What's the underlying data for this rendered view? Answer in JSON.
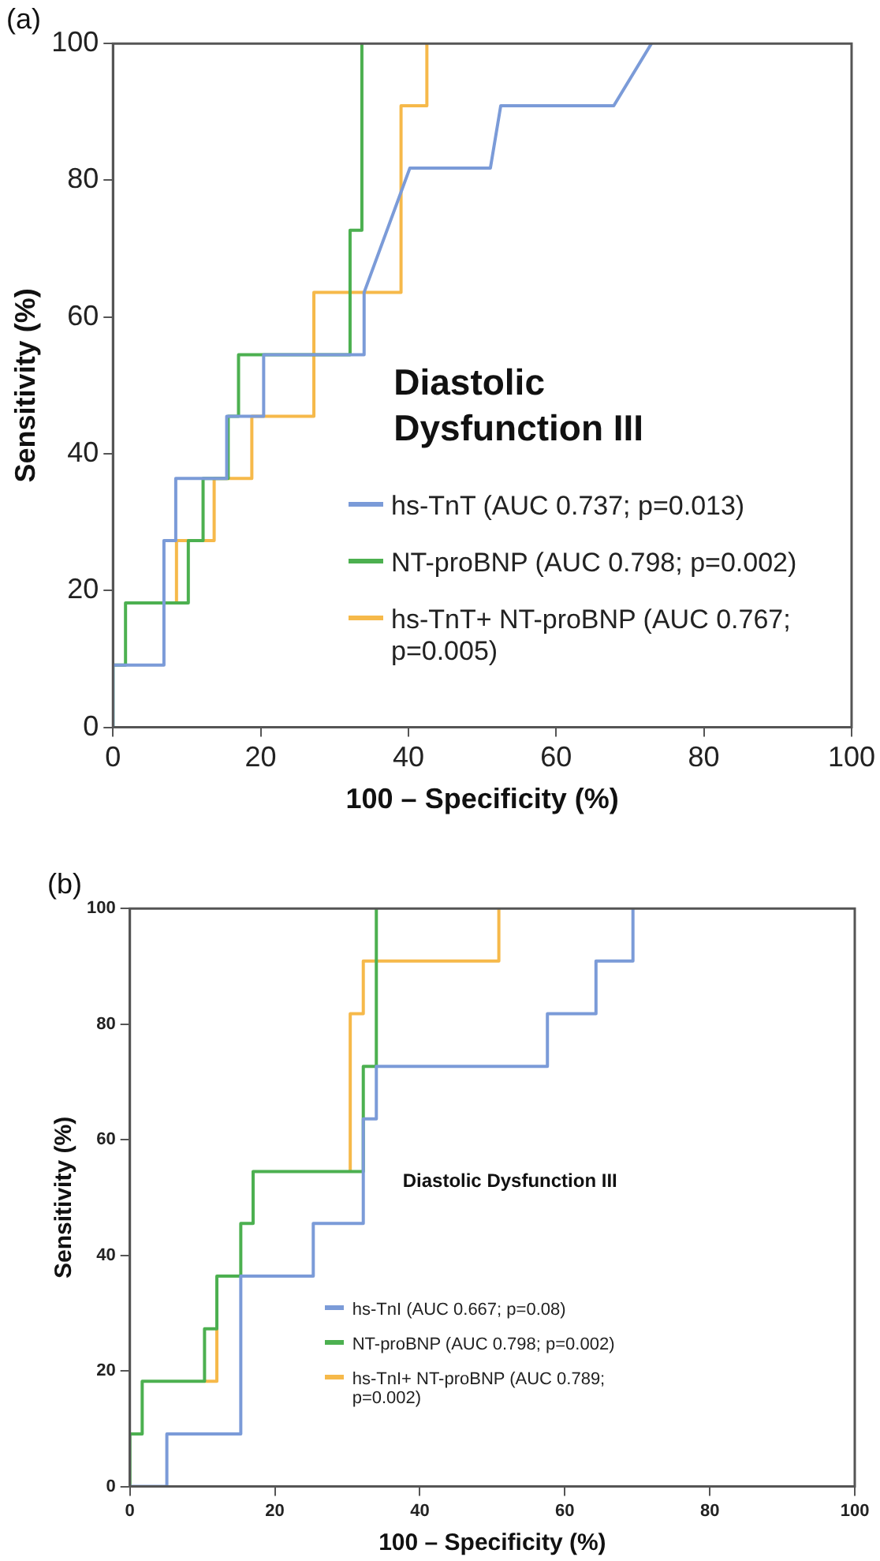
{
  "chart_data": [
    {
      "type": "line",
      "title": "(a)",
      "xlabel": "100 – Specificity (%)",
      "ylabel": "Sensitivity (%)",
      "annotations": [
        "Diastolic Dysfunction III"
      ],
      "xlim": [
        0,
        100
      ],
      "ylim": [
        0,
        100
      ],
      "xticks": [
        0,
        20,
        40,
        60,
        80,
        100
      ],
      "yticks": [
        0,
        20,
        40,
        60,
        80,
        100
      ],
      "grid": false,
      "legend": "bottom right",
      "marker": "none",
      "line_style": "solid",
      "series": [
        {
          "name": "hs-TnT (AUC 0.737; p=0.013)",
          "color": "#7b9bd8",
          "x": [
            0,
            0,
            6.9,
            6.9,
            8.5,
            8.5,
            15.4,
            15.4,
            20.4,
            20.4,
            34,
            34,
            40.2,
            51.1,
            52.5,
            67.8,
            72.9
          ],
          "values": [
            0,
            9.1,
            9.1,
            27.3,
            27.3,
            36.4,
            36.4,
            45.5,
            45.5,
            54.5,
            54.5,
            63.6,
            81.8,
            81.8,
            90.9,
            90.9,
            100
          ]
        },
        {
          "name": "NT-proBNP (AUC 0.798; p=0.002)",
          "color": "#4cb050",
          "x": [
            0,
            0,
            1.7,
            1.7,
            10.2,
            10.2,
            12.2,
            12.2,
            15.6,
            15.6,
            17,
            17,
            32.1,
            32.1,
            33.7,
            33.7
          ],
          "values": [
            0,
            9.1,
            9.1,
            18.2,
            18.2,
            27.3,
            27.3,
            36.4,
            36.4,
            45.5,
            45.5,
            54.5,
            54.5,
            72.7,
            72.7,
            100
          ]
        },
        {
          "name": "hs-TnT+ NT-proBNP (AUC 0.767; p=0.005)",
          "color": "#f6b94a",
          "x": [
            8.6,
            8.6,
            13.7,
            13.7,
            18.8,
            18.8,
            27.2,
            27.2,
            39,
            39,
            42.5,
            42.5
          ],
          "values": [
            18.2,
            27.3,
            27.3,
            36.4,
            36.4,
            45.5,
            45.5,
            63.6,
            63.6,
            90.9,
            90.9,
            100
          ]
        }
      ]
    },
    {
      "type": "line",
      "title": "(b)",
      "xlabel": "100 – Specificity (%)",
      "ylabel": "Sensitivity (%)",
      "annotations": [
        "Diastolic Dysfunction III"
      ],
      "xlim": [
        0,
        100
      ],
      "ylim": [
        0,
        100
      ],
      "xticks": [
        0,
        20,
        40,
        60,
        80,
        100
      ],
      "yticks": [
        0,
        20,
        40,
        60,
        80,
        100
      ],
      "grid": false,
      "legend": "bottom left",
      "marker": "none",
      "line_style": "solid",
      "series": [
        {
          "name": "hs-TnI (AUC 0.667; p=0.08)",
          "color": "#7b9bd8",
          "x": [
            0,
            5.1,
            5.1,
            15.3,
            15.3,
            25.3,
            25.3,
            32.2,
            32.2,
            34,
            34,
            57.6,
            57.6,
            64.3,
            64.3,
            69.4,
            69.4
          ],
          "values": [
            0,
            0,
            9.1,
            9.1,
            36.4,
            36.4,
            45.5,
            45.5,
            63.6,
            63.6,
            72.7,
            72.7,
            81.8,
            81.8,
            90.9,
            90.9,
            100
          ]
        },
        {
          "name": "NT-proBNP (AUC 0.798; p=0.002)",
          "color": "#4cb050",
          "x": [
            0,
            0,
            1.7,
            1.7,
            10.3,
            10.3,
            12,
            12,
            15.3,
            15.3,
            17,
            17,
            32.2,
            32.2,
            34,
            34
          ],
          "values": [
            0,
            9.1,
            9.1,
            18.2,
            18.2,
            27.3,
            27.3,
            36.4,
            36.4,
            45.5,
            45.5,
            54.5,
            54.5,
            72.7,
            72.7,
            100
          ]
        },
        {
          "name": "hs-TnI+ NT-proBNP (AUC 0.789; p=0.002)",
          "color": "#f6b94a",
          "x": [
            10.3,
            12,
            12,
            20,
            30.4,
            30.4,
            32.2,
            32.2,
            50.9,
            50.9
          ],
          "values": [
            18.2,
            18.2,
            27.3,
            null,
            54.5,
            81.8,
            81.8,
            90.9,
            90.9,
            100
          ]
        }
      ]
    }
  ]
}
